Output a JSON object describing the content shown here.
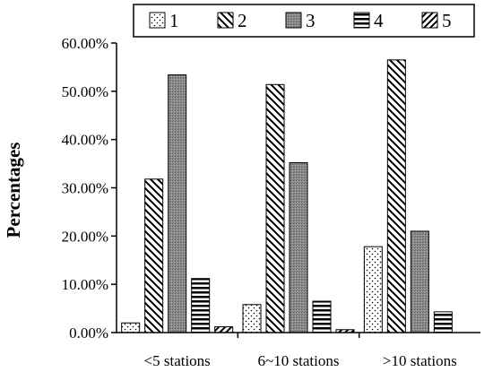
{
  "chart_data": {
    "type": "bar",
    "categories": [
      "<5 stations",
      "6~10 stations",
      ">10 stations"
    ],
    "series": [
      {
        "name": "1",
        "values": [
          2.0,
          5.8,
          17.8
        ]
      },
      {
        "name": "2",
        "values": [
          31.8,
          51.4,
          56.5
        ]
      },
      {
        "name": "3",
        "values": [
          53.4,
          35.2,
          21.0
        ]
      },
      {
        "name": "4",
        "values": [
          11.2,
          6.5,
          4.3
        ]
      },
      {
        "name": "5",
        "values": [
          1.2,
          0.6,
          0.0
        ]
      }
    ],
    "title": "",
    "xlabel": "",
    "ylabel": "Percentages",
    "ylim": [
      0,
      60
    ],
    "yticks": [
      "0.00%",
      "10.00%",
      "20.00%",
      "30.00%",
      "40.00%",
      "50.00%",
      "60.00%"
    ],
    "grid": false,
    "legend_position": "top",
    "patterns": [
      "dots",
      "diagonal-back",
      "dense-gray",
      "horizontal",
      "diagonal-forward"
    ],
    "colors": {
      "background": "#ffffff",
      "axis": "#000000",
      "dense_gray": "#8c8c8c"
    }
  }
}
